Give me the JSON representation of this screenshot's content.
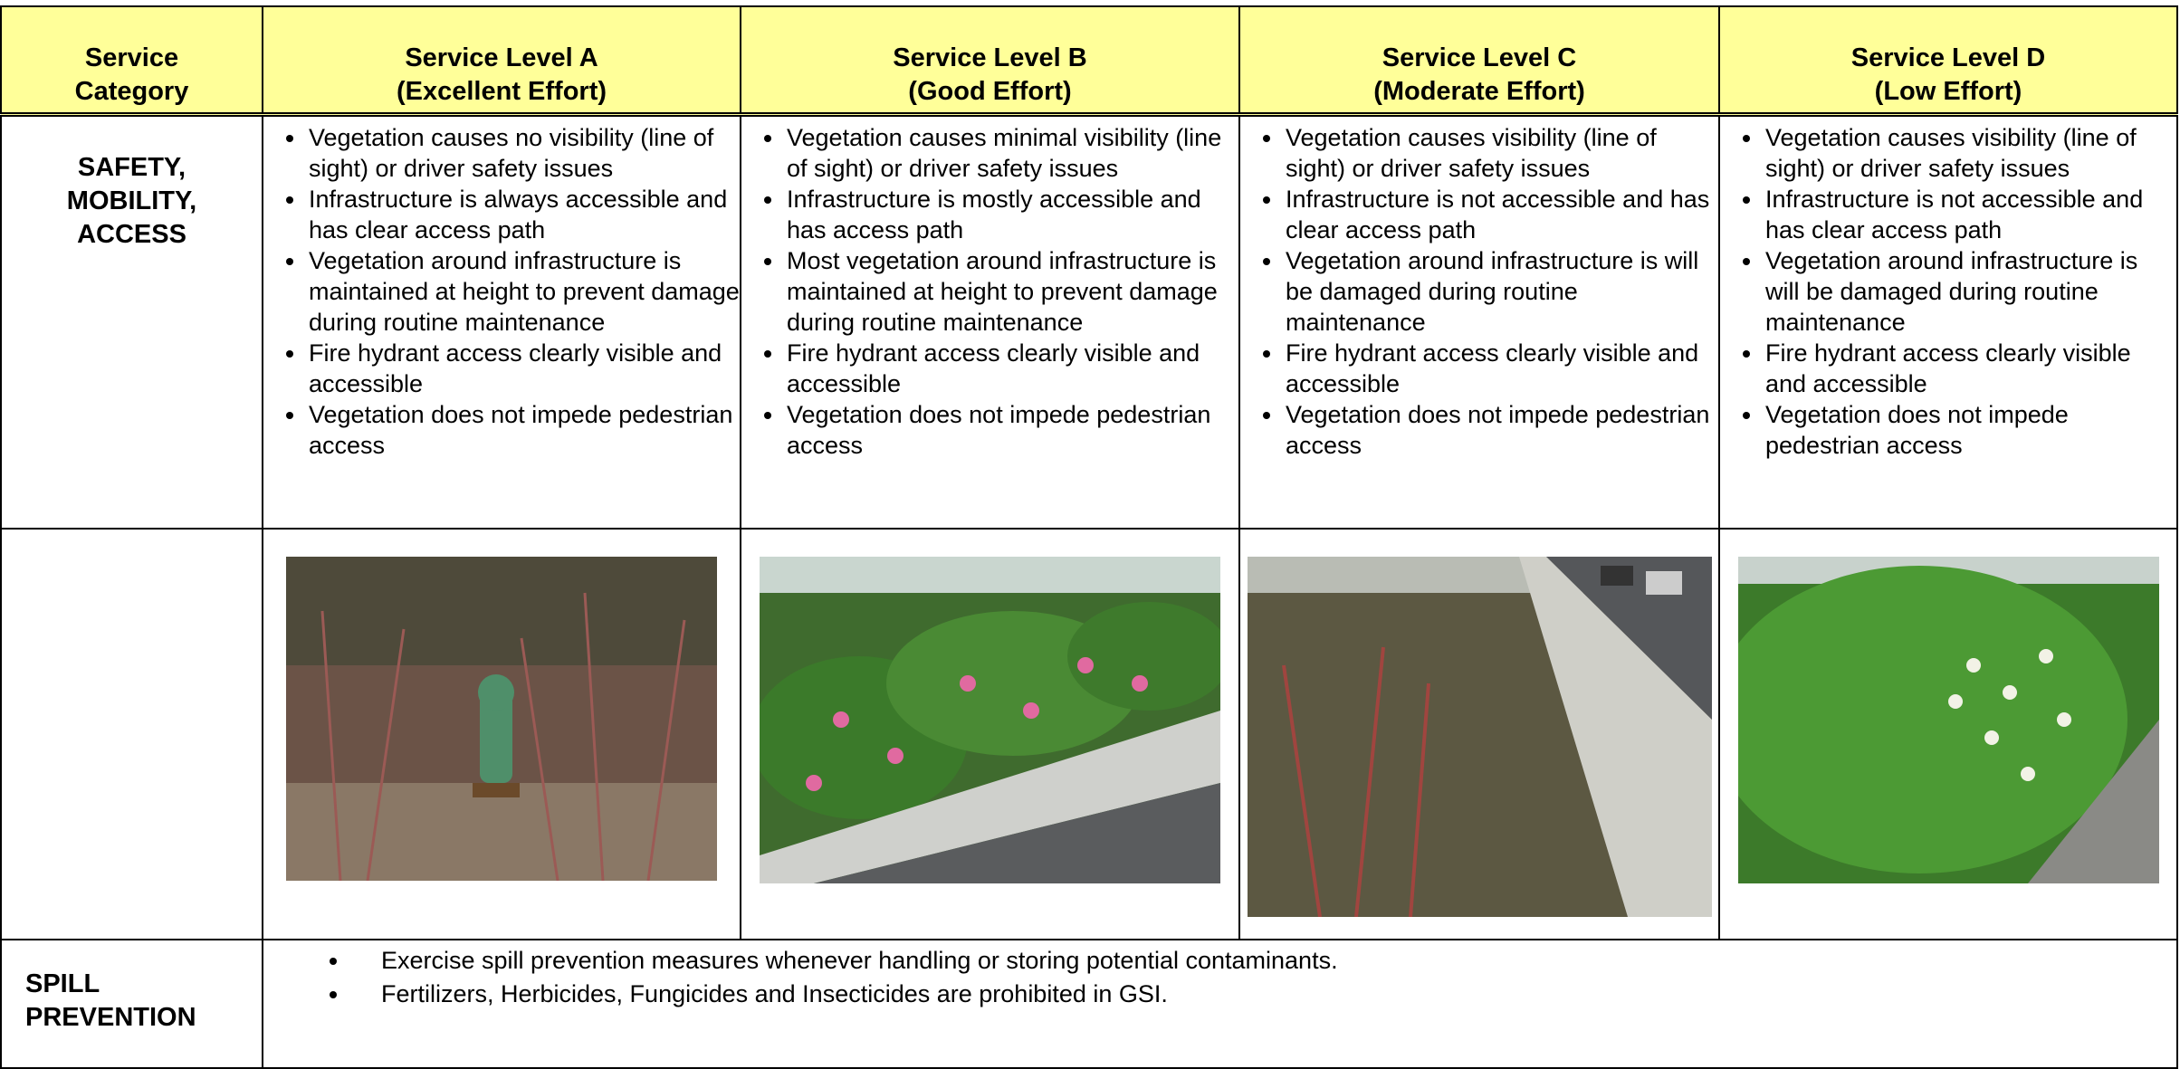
{
  "table": {
    "header": [
      [
        "Service",
        "Category"
      ],
      [
        "Service Level A",
        "(Excellent Effort)"
      ],
      [
        "Service Level B",
        "(Good Effort)"
      ],
      [
        "Service Level C",
        "(Moderate Effort)"
      ],
      [
        "Service Level D",
        "(Low Effort)"
      ]
    ],
    "rows": [
      {
        "category": "SAFETY, MOBILITY, ACCESS",
        "cells": [
          [
            "Vegetation causes no visibility (line of sight) or driver safety issues",
            "Infrastructure is always accessible and has clear access path",
            "Vegetation around infrastructure is maintained at height to prevent damage during routine maintenance",
            "Fire hydrant access clearly visible and accessible",
            "Vegetation does not impede pedestrian access"
          ],
          [
            "Vegetation causes minimal visibility (line of sight) or driver safety issues",
            "Infrastructure is mostly accessible and has access path",
            "Most vegetation around infrastructure is maintained at height to prevent damage during routine maintenance",
            "Fire hydrant access clearly visible and accessible",
            "Vegetation does not impede pedestrian access"
          ],
          [
            "Vegetation causes visibility (line of sight) or driver safety issues",
            "Infrastructure is not accessible and has clear access path",
            "Vegetation around infrastructure is will be damaged during routine maintenance",
            "Fire hydrant access clearly visible and accessible",
            "Vegetation does not impede pedestrian access"
          ],
          [
            "Vegetation causes visibility (line of sight) or driver safety issues",
            "Infrastructure is not accessible and has clear access path",
            "Vegetation around infrastructure is will be damaged during routine maintenance",
            "Fire hydrant access clearly visible and accessible",
            "Vegetation does not impede pedestrian access"
          ]
        ]
      },
      {
        "category": "SPILL PREVENTION",
        "items": [
          "Exercise spill prevention measures whenever handling or storing potential contaminants.",
          "Fertilizers, Herbicides, Fungicides and Insecticides are prohibited in GSI."
        ]
      }
    ]
  }
}
